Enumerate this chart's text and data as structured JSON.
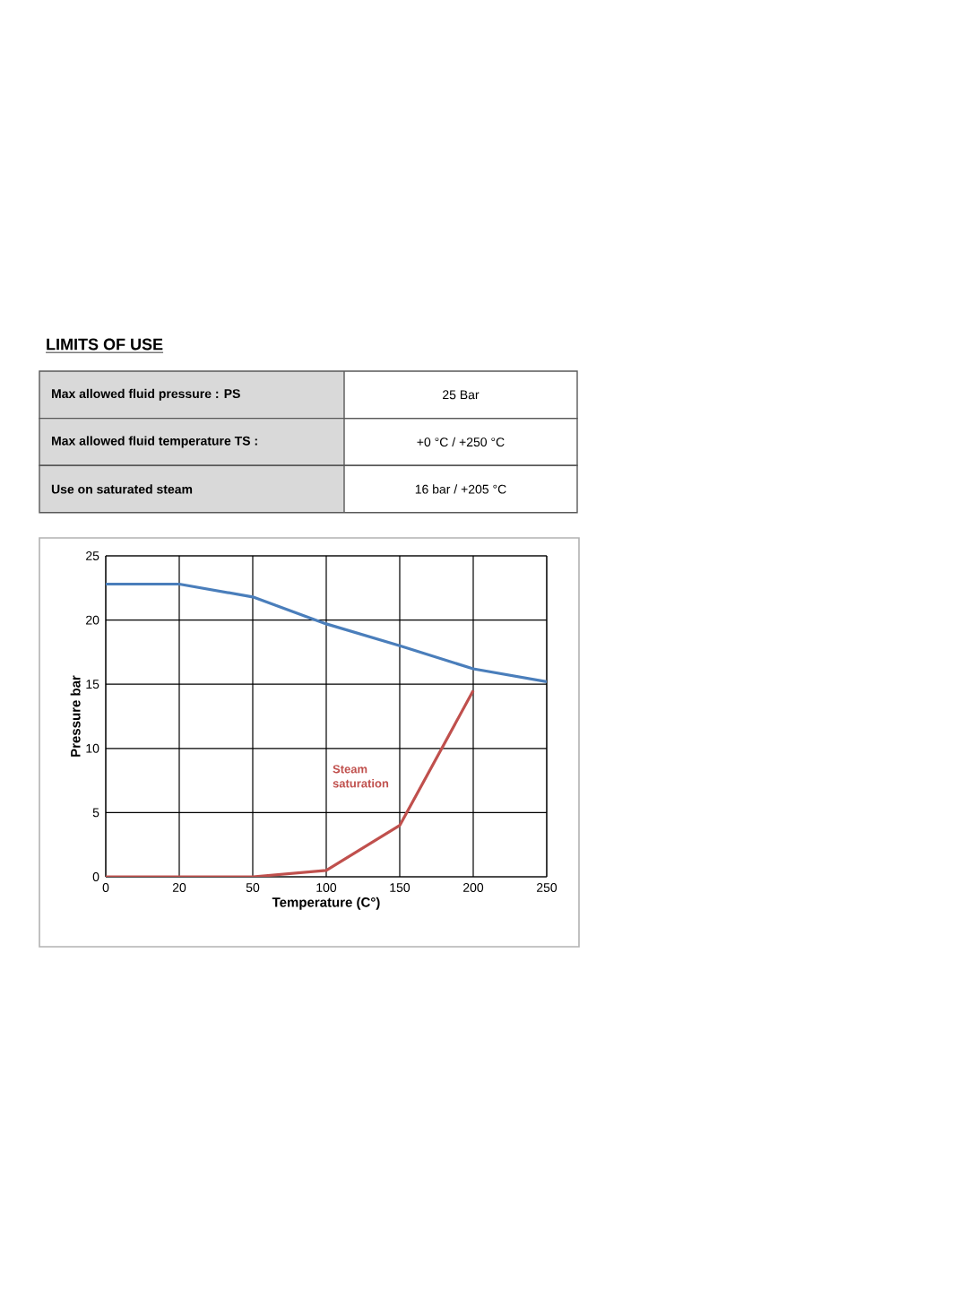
{
  "chart_data": [
    {
      "type": "other",
      "title": "LIMITS OF USE",
      "annotations": [
        "Max allowed fluid pressure : PS",
        "25 Bar",
        "Max allowed fluid temperature TS :",
        "+0 °C / +250 °C",
        "Use on saturated steam",
        "16 bar / +205 °C"
      ]
    },
    {
      "type": "line",
      "xlabel": "Temperature (C°)",
      "ylabel": "Pressure bar",
      "categories": [
        "0",
        "20",
        "50",
        "100",
        "150",
        "200",
        "250"
      ],
      "ylim": [
        0,
        25
      ],
      "yticks": [
        0,
        5,
        10,
        15,
        20,
        25
      ],
      "grid": true,
      "series": [
        {
          "color": "#4a7ebb",
          "values": [
            22.8,
            22.8,
            21.8,
            19.7,
            18.0,
            16.2,
            15.2
          ]
        },
        {
          "name": "Steam saturation",
          "color": "#c0504d",
          "values": [
            0,
            0,
            0,
            0.5,
            4,
            14.5,
            null
          ]
        }
      ]
    }
  ]
}
